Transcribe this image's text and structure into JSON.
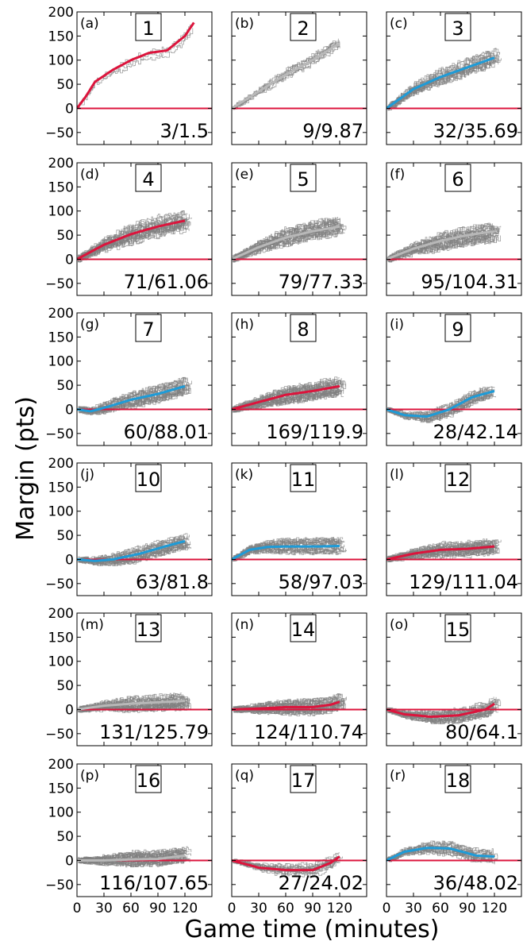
{
  "figure": {
    "ylabel": "Margin (pts)",
    "xlabel": "Game time (minutes)"
  },
  "chart_data": {
    "type": "line",
    "x_range": [
      0,
      150
    ],
    "y_range": [
      -75,
      200
    ],
    "x_ticks": [
      0,
      30,
      60,
      90,
      120
    ],
    "y_ticks": [
      200,
      150,
      100,
      50,
      0,
      -50
    ],
    "y_tick_labels": [
      "200",
      "150",
      "100",
      "50",
      "0",
      "−50"
    ],
    "zero_line_color": "#dc143c",
    "trace_color": "#808080",
    "colors": {
      "red": "#dc143c",
      "blue": "#1e9bd7",
      "gray": "#b8b8b8"
    },
    "panels": [
      {
        "letter": "(a)",
        "number": "1",
        "stat": "3/1.5",
        "mean_color": "red",
        "n_traces": 3,
        "spread": 12,
        "x_max": 130,
        "mean_x": [
          0,
          10,
          20,
          40,
          60,
          80,
          100,
          120,
          130
        ],
        "mean_y": [
          0,
          25,
          55,
          80,
          100,
          115,
          120,
          150,
          178
        ]
      },
      {
        "letter": "(b)",
        "number": "2",
        "stat": "9/9.87",
        "mean_color": "gray",
        "n_traces": 9,
        "spread": 12,
        "x_max": 120,
        "mean_x": [
          0,
          30,
          60,
          90,
          120
        ],
        "mean_y": [
          0,
          35,
          70,
          100,
          135
        ]
      },
      {
        "letter": "(c)",
        "number": "3",
        "stat": "32/35.69",
        "mean_color": "blue",
        "n_traces": 20,
        "spread": 16,
        "x_max": 125,
        "mean_x": [
          0,
          30,
          60,
          90,
          120
        ],
        "mean_y": [
          0,
          40,
          65,
          85,
          105
        ]
      },
      {
        "letter": "(d)",
        "number": "4",
        "stat": "71/61.06",
        "mean_color": "red",
        "n_traces": 25,
        "spread": 18,
        "x_max": 125,
        "mean_x": [
          0,
          30,
          60,
          90,
          120
        ],
        "mean_y": [
          0,
          30,
          52,
          68,
          80
        ]
      },
      {
        "letter": "(e)",
        "number": "5",
        "stat": "79/77.33",
        "mean_color": "gray",
        "n_traces": 25,
        "spread": 17,
        "x_max": 125,
        "mean_x": [
          0,
          30,
          60,
          90,
          120
        ],
        "mean_y": [
          0,
          25,
          45,
          58,
          68
        ]
      },
      {
        "letter": "(f)",
        "number": "6",
        "stat": "95/104.31",
        "mean_color": "gray",
        "n_traces": 25,
        "spread": 17,
        "x_max": 125,
        "mean_x": [
          0,
          30,
          60,
          90,
          120
        ],
        "mean_y": [
          0,
          22,
          38,
          50,
          58
        ]
      },
      {
        "letter": "(g)",
        "number": "7",
        "stat": "60/88.01",
        "mean_color": "blue",
        "n_traces": 25,
        "spread": 15,
        "x_max": 125,
        "mean_x": [
          0,
          15,
          30,
          60,
          90,
          120
        ],
        "mean_y": [
          0,
          -4,
          3,
          20,
          32,
          48
        ]
      },
      {
        "letter": "(h)",
        "number": "8",
        "stat": "169/119.9",
        "mean_color": "red",
        "n_traces": 30,
        "spread": 16,
        "x_max": 125,
        "mean_x": [
          0,
          30,
          60,
          90,
          120
        ],
        "mean_y": [
          0,
          15,
          30,
          38,
          48
        ]
      },
      {
        "letter": "(i)",
        "number": "9",
        "stat": "28/42.14",
        "mean_color": "blue",
        "n_traces": 20,
        "spread": 12,
        "x_max": 120,
        "mean_x": [
          0,
          20,
          45,
          70,
          95,
          120
        ],
        "mean_y": [
          0,
          -12,
          -15,
          0,
          25,
          38
        ]
      },
      {
        "letter": "(j)",
        "number": "10",
        "stat": "63/81.8",
        "mean_color": "blue",
        "n_traces": 25,
        "spread": 13,
        "x_max": 125,
        "mean_x": [
          0,
          20,
          40,
          70,
          100,
          120
        ],
        "mean_y": [
          0,
          -3,
          0,
          12,
          28,
          38
        ]
      },
      {
        "letter": "(k)",
        "number": "11",
        "stat": "58/97.03",
        "mean_color": "blue",
        "n_traces": 25,
        "spread": 13,
        "x_max": 125,
        "mean_x": [
          0,
          20,
          40,
          70,
          100,
          120
        ],
        "mean_y": [
          0,
          20,
          26,
          27,
          27,
          28
        ]
      },
      {
        "letter": "(l)",
        "number": "12",
        "stat": "129/111.04",
        "mean_color": "red",
        "n_traces": 30,
        "spread": 14,
        "x_max": 125,
        "mean_x": [
          0,
          30,
          60,
          90,
          120
        ],
        "mean_y": [
          0,
          12,
          20,
          22,
          27
        ]
      },
      {
        "letter": "(m)",
        "number": "13",
        "stat": "131/125.79",
        "mean_color": "gray",
        "n_traces": 30,
        "spread": 14,
        "x_max": 125,
        "mean_x": [
          0,
          30,
          60,
          90,
          120
        ],
        "mean_y": [
          0,
          8,
          12,
          15,
          18
        ]
      },
      {
        "letter": "(n)",
        "number": "14",
        "stat": "124/110.74",
        "mean_color": "red",
        "n_traces": 30,
        "spread": 14,
        "x_max": 125,
        "mean_x": [
          0,
          30,
          60,
          90,
          110,
          120
        ],
        "mean_y": [
          0,
          2,
          5,
          5,
          10,
          16
        ]
      },
      {
        "letter": "(o)",
        "number": "15",
        "stat": "80/64.1",
        "mean_color": "red",
        "n_traces": 25,
        "spread": 13,
        "x_max": 125,
        "mean_x": [
          0,
          20,
          50,
          80,
          110,
          120
        ],
        "mean_y": [
          0,
          -10,
          -15,
          -12,
          0,
          12
        ]
      },
      {
        "letter": "(p)",
        "number": "16",
        "stat": "116/107.65",
        "mean_color": "gray",
        "n_traces": 30,
        "spread": 14,
        "x_max": 125,
        "mean_x": [
          0,
          30,
          60,
          90,
          120
        ],
        "mean_y": [
          0,
          0,
          2,
          3,
          10
        ]
      },
      {
        "letter": "(q)",
        "number": "17",
        "stat": "27/24.02",
        "mean_color": "red",
        "n_traces": 15,
        "spread": 11,
        "x_max": 122,
        "mean_x": [
          0,
          30,
          60,
          90,
          110,
          120
        ],
        "mean_y": [
          0,
          -15,
          -20,
          -20,
          -5,
          8
        ]
      },
      {
        "letter": "(r)",
        "number": "18",
        "stat": "36/48.02",
        "mean_color": "blue",
        "n_traces": 20,
        "spread": 12,
        "x_max": 122,
        "mean_x": [
          0,
          20,
          45,
          70,
          100,
          120
        ],
        "mean_y": [
          0,
          18,
          26,
          25,
          10,
          8
        ]
      }
    ]
  }
}
